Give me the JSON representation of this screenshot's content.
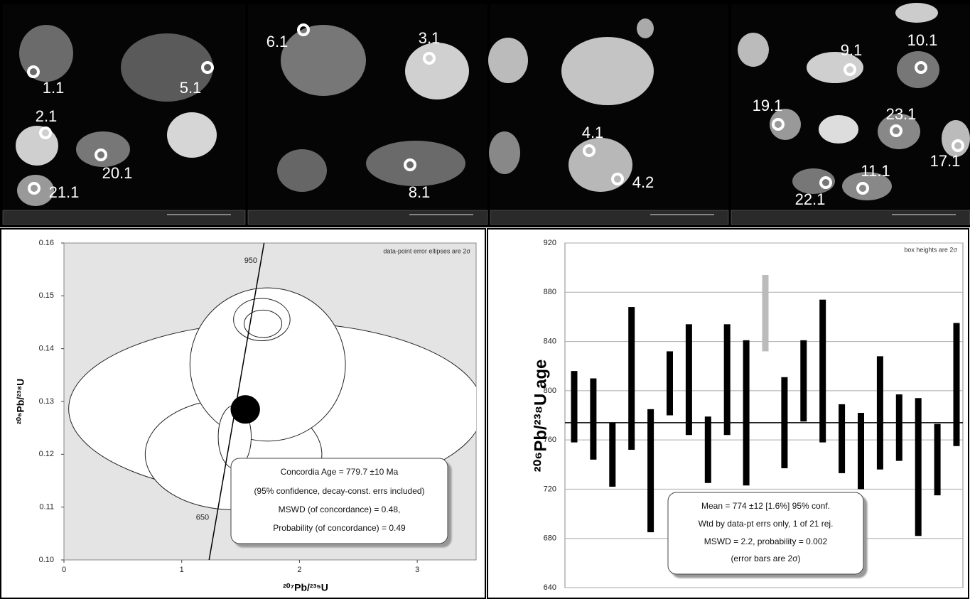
{
  "images": [
    {
      "spots": [
        "1.1",
        "5.1",
        "2.1",
        "20.1",
        "21.1"
      ]
    },
    {
      "spots": [
        "6.1",
        "3.1",
        "8.1"
      ]
    },
    {
      "spots": [
        "4.1",
        "4.2"
      ]
    },
    {
      "spots": [
        "9.1",
        "10.1",
        "19.1",
        "23.1",
        "17.1",
        "22.1",
        "11.1"
      ]
    }
  ],
  "chart_data": [
    {
      "type": "concordia",
      "xlabel": "²⁰⁷Pb/²³⁵U",
      "ylabel": "²⁰⁶Pb/²³⁸U",
      "note": "data-point error ellipses are 2σ",
      "xlim": [
        0,
        3.5
      ],
      "xticks": [
        0,
        1,
        2,
        3
      ],
      "ylim": [
        0.1,
        0.16
      ],
      "yticks": [
        {
          "value": 0.1,
          "label": "0.10"
        },
        0.11,
        0.12,
        0.13,
        0.14,
        0.15,
        0.16
      ],
      "concordia": {
        "ages": [
          650,
          950
        ],
        "x": [
          1.28,
          1.69
        ],
        "y": [
          0.1061,
          0.1588
        ]
      },
      "ellipses": [
        {
          "x": 1.8,
          "y": 0.1286,
          "rx": 1.76,
          "ry": 0.0164
        },
        {
          "x": 1.44,
          "y": 0.12,
          "rx": 0.75,
          "ry": 0.0105
        },
        {
          "x": 1.73,
          "y": 0.137,
          "rx": 0.66,
          "ry": 0.0145
        },
        {
          "x": 1.68,
          "y": 0.1455,
          "rx": 0.24,
          "ry": 0.004
        },
        {
          "x": 1.69,
          "y": 0.1447,
          "rx": 0.16,
          "ry": 0.0026
        },
        {
          "x": 1.45,
          "y": 0.1233,
          "rx": 0.14,
          "ry": 0.006
        }
      ],
      "ellipse_color": "#ffffff",
      "age_ellipse": {
        "x": 1.54,
        "y": 0.1285,
        "rx": 0.125,
        "ry": 0.0027,
        "color": "#000000"
      },
      "plot_color": "#e4e4e4",
      "annotation": [
        "Concordia Age = 779.7 ±10 Ma",
        "(95% confidence, decay-const. errs included)",
        "MSWD (of concordance) = 0.48,",
        "Probability (of concordance) = 0.49"
      ]
    },
    {
      "type": "weighted-mean",
      "ylabel": "²⁰⁶Pb/²³⁸U age",
      "note": "box heights are 2σ",
      "ylim": [
        640,
        920
      ],
      "yticks": [
        640,
        680,
        720,
        760,
        800,
        840,
        880,
        920
      ],
      "grid": true,
      "values": [
        787,
        777,
        748,
        810,
        735,
        806,
        809,
        752,
        809,
        782,
        863,
        774,
        808,
        816,
        761,
        751,
        782,
        770,
        738,
        744,
        805
      ],
      "errors": [
        29,
        33,
        26,
        58,
        50,
        26,
        45,
        27,
        45,
        59,
        31,
        37,
        33,
        58,
        28,
        31,
        46,
        27,
        56,
        29,
        50
      ],
      "rejected": [
        false,
        false,
        false,
        false,
        false,
        false,
        false,
        false,
        false,
        false,
        true,
        false,
        false,
        false,
        false,
        false,
        false,
        false,
        false,
        false,
        false
      ],
      "color": "#000000",
      "rejected_color": "#bbbbbb",
      "mean": 774,
      "annotation": [
        "Mean = 774 ±12  [1.6%]  95% conf.",
        "Wtd by data-pt errs only, 1 of 21 rej.",
        "MSWD = 2.2, probability = 0.002",
        "(error bars are 2σ)"
      ]
    }
  ]
}
